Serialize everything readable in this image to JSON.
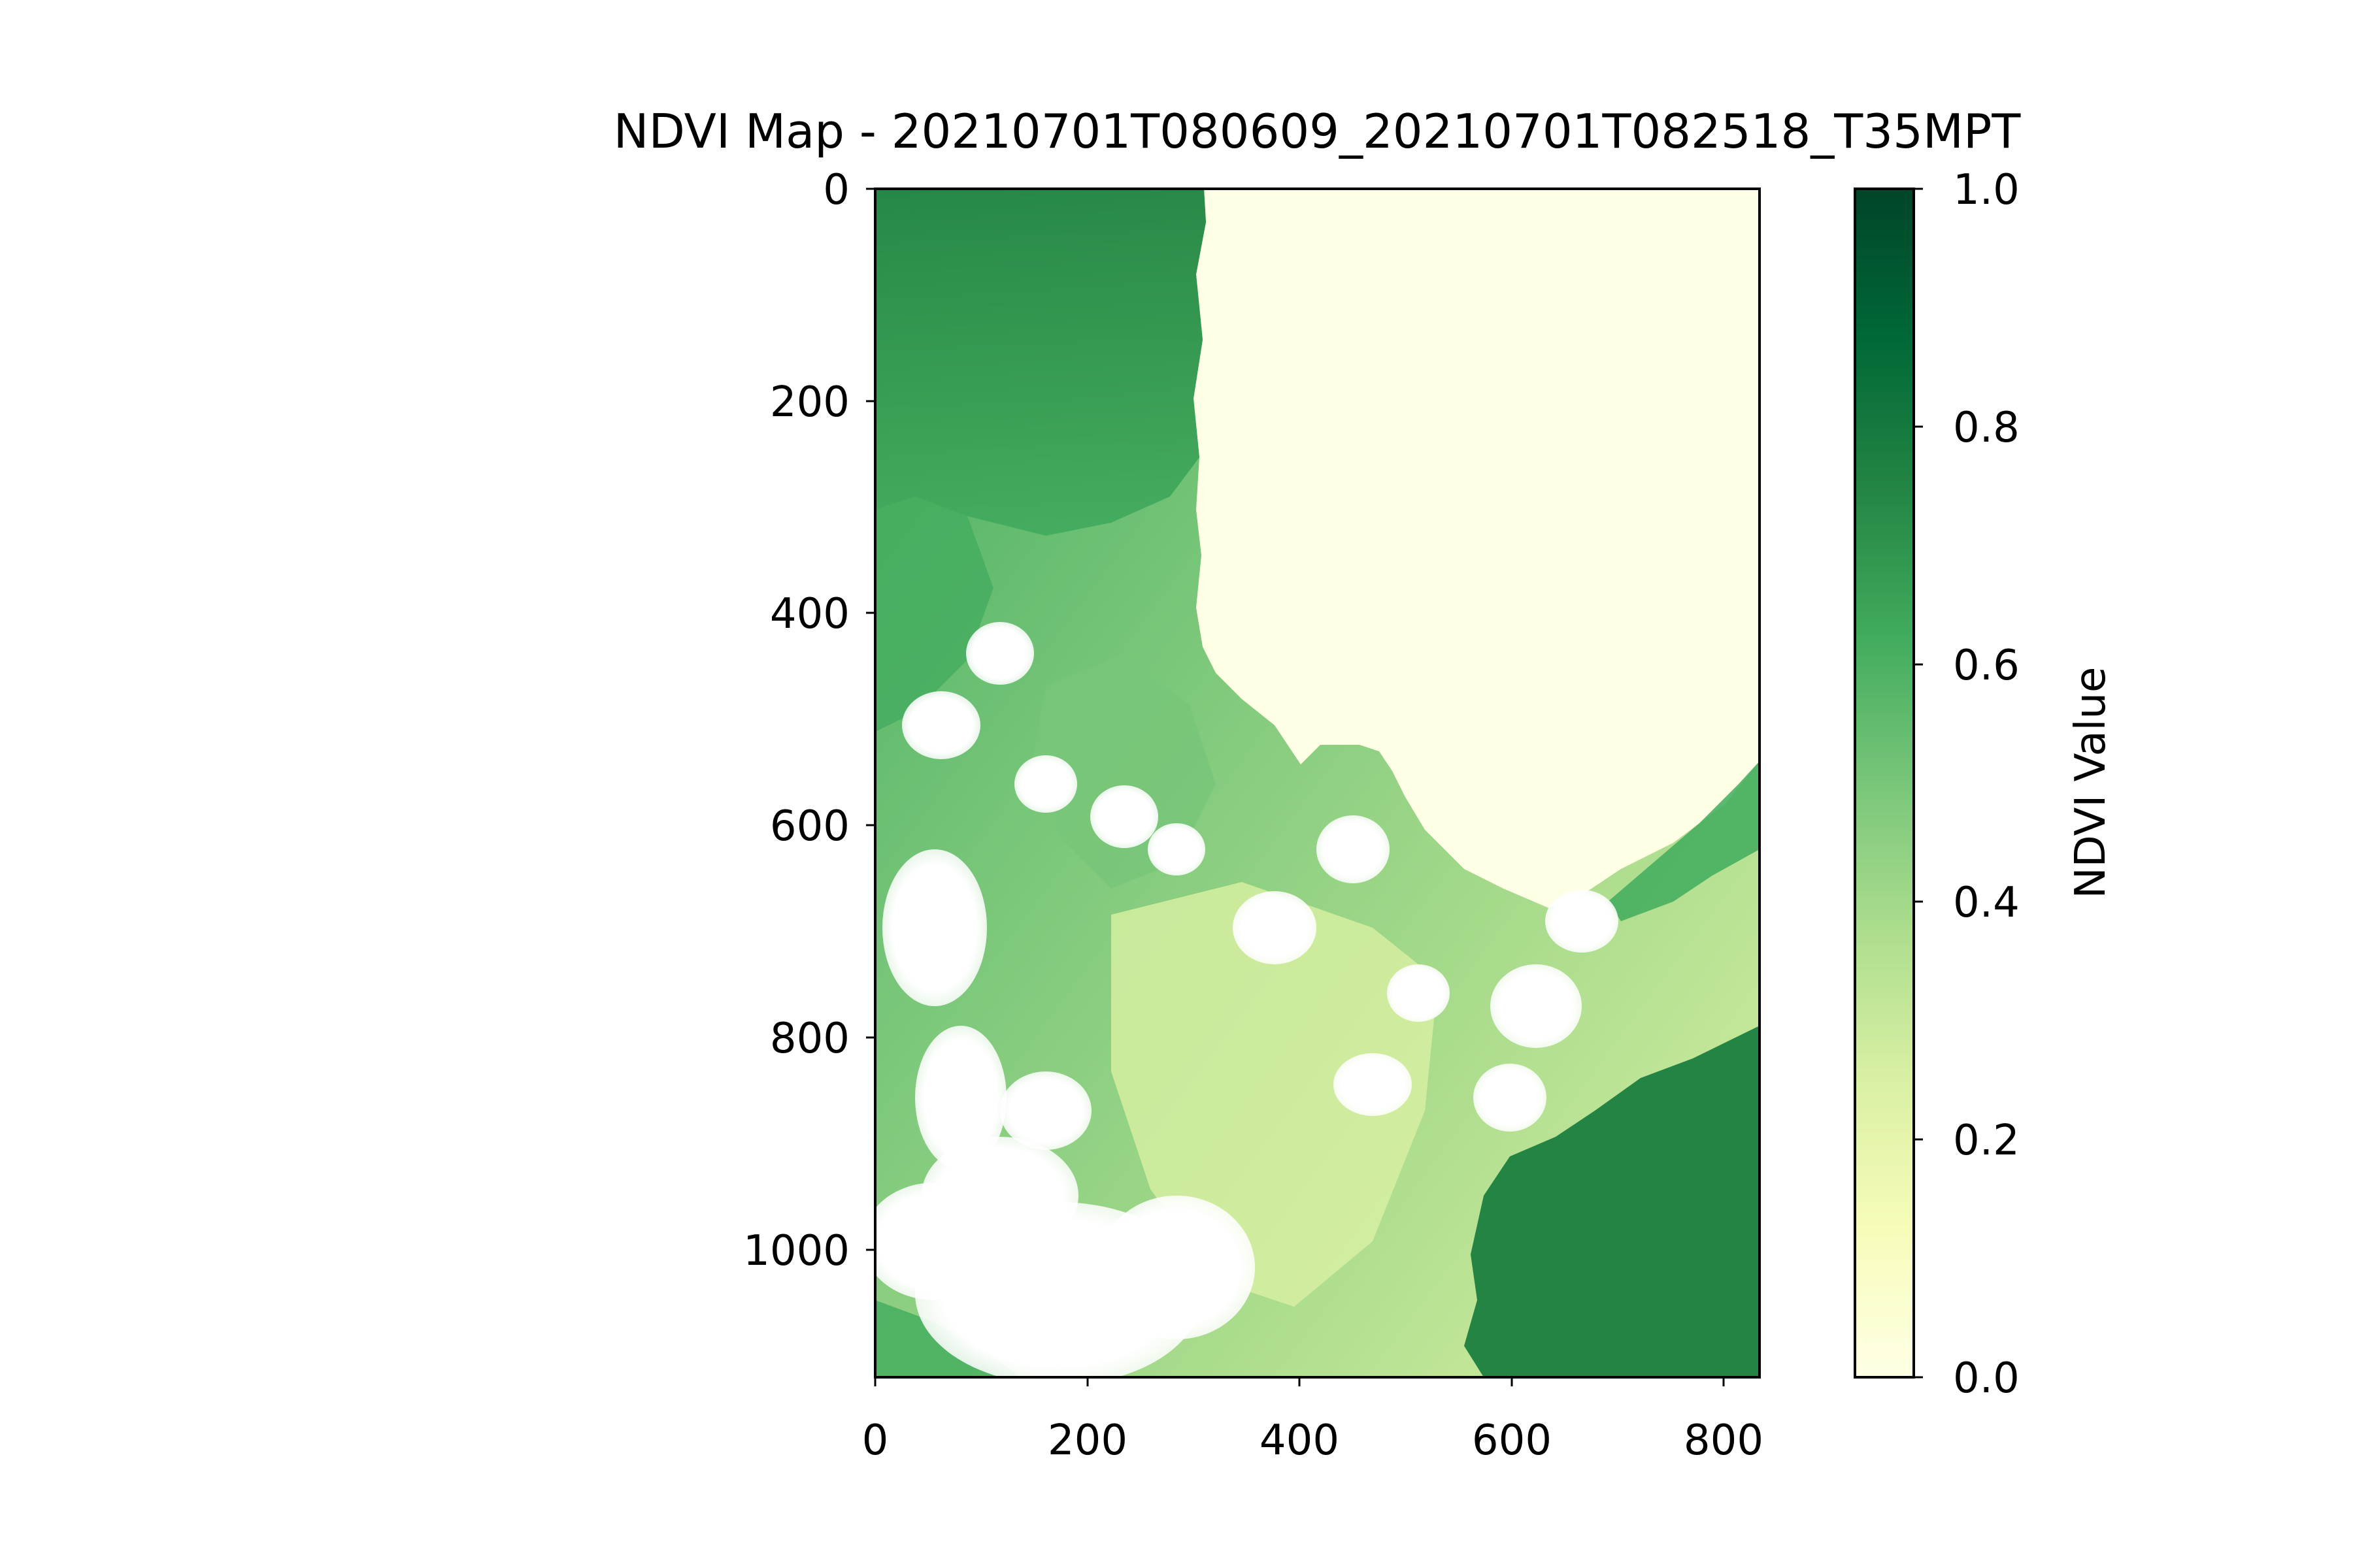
{
  "chart_data": {
    "type": "heatmap",
    "title": "NDVI Map - 20210701T080609_20210701T082518_T35MPT",
    "xlabel": "",
    "ylabel": "",
    "xlim": [
      0,
      834
    ],
    "ylim": [
      1120,
      0
    ],
    "x_ticks": [
      0,
      200,
      400,
      600,
      800
    ],
    "x_tick_labels": [
      "0",
      "200",
      "400",
      "600",
      "800"
    ],
    "y_ticks": [
      0,
      200,
      400,
      600,
      800,
      1000
    ],
    "y_tick_labels": [
      "0",
      "200",
      "400",
      "600",
      "800",
      "1000"
    ],
    "grid": false,
    "colormap": "YlGn",
    "colorbar": {
      "label": "NDVI Value",
      "range": [
        0.0,
        1.0
      ],
      "ticks": [
        0.0,
        0.2,
        0.4,
        0.6,
        0.8,
        1.0
      ],
      "tick_labels": [
        "0.0",
        "0.2",
        "0.4",
        "0.6",
        "0.8",
        "1.0"
      ]
    },
    "regions": {
      "water_ndvi": 0.02,
      "vegetation_ndvi_range": [
        0.3,
        0.85
      ],
      "masked_clouds": "white (no data)"
    },
    "colormap_stops": [
      "#ffffe5",
      "#f7fcb9",
      "#d9f0a3",
      "#addd8e",
      "#78c679",
      "#41ab5d",
      "#238443",
      "#006837",
      "#004529"
    ]
  }
}
